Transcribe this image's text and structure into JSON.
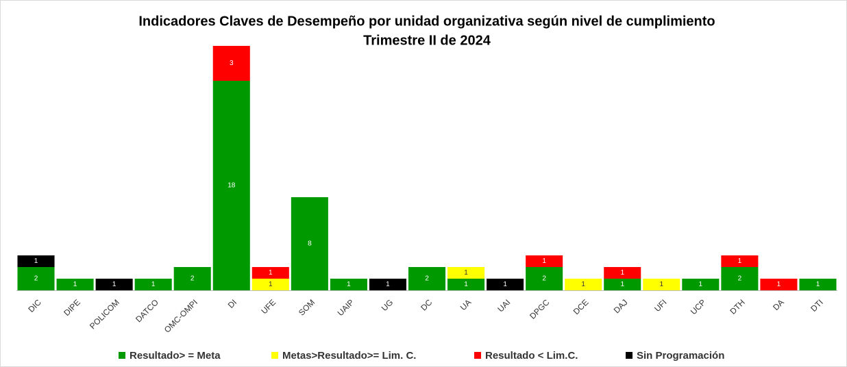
{
  "chart_data": {
    "type": "stacked_bar",
    "title": "Indicadores Claves de Desempeño por unidad organizativa según nivel de cumplimiento",
    "subtitle": "Trimestre II de 2024",
    "categories": [
      "DIC",
      "DIPE",
      "POLICOM",
      "DATCO",
      "OMC-OMPI",
      "DI",
      "UFE",
      "SOM",
      "UAIP",
      "UG",
      "DC",
      "UA",
      "UAI",
      "DPGC",
      "DCE",
      "DAJ",
      "UFI",
      "UCP",
      "DTH",
      "DA",
      "DTI"
    ],
    "series": [
      {
        "name": "Resultado> = Meta",
        "color": "#009900",
        "values": [
          2,
          1,
          null,
          1,
          2,
          18,
          null,
          8,
          1,
          null,
          2,
          1,
          null,
          2,
          null,
          1,
          null,
          1,
          2,
          null,
          1
        ]
      },
      {
        "name": "Metas>Resultado>= Lim. C.",
        "color": "#ffff00",
        "values": [
          null,
          null,
          null,
          null,
          null,
          null,
          1,
          null,
          null,
          null,
          null,
          1,
          null,
          null,
          1,
          null,
          1,
          null,
          null,
          null,
          null
        ]
      },
      {
        "name": "Resultado < Lim.C.",
        "color": "#ff0000",
        "values": [
          null,
          null,
          null,
          null,
          null,
          3,
          1,
          null,
          null,
          null,
          null,
          null,
          null,
          1,
          null,
          1,
          null,
          null,
          1,
          1,
          null
        ]
      },
      {
        "name": "Sin Programación",
        "color": "#000000",
        "values": [
          1,
          null,
          1,
          null,
          null,
          null,
          null,
          null,
          null,
          1,
          null,
          null,
          1,
          null,
          null,
          null,
          null,
          null,
          null,
          null,
          null
        ]
      }
    ],
    "legend": "bottom"
  }
}
